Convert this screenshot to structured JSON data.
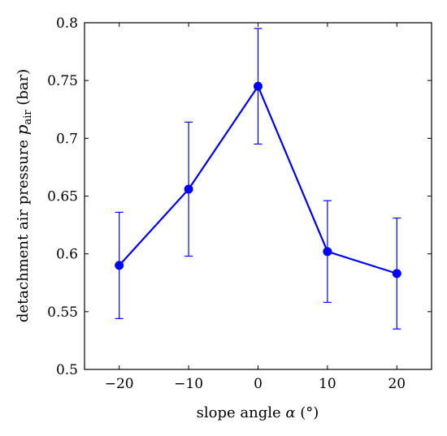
{
  "chart_data": {
    "type": "line",
    "title": "",
    "xlabel_prefix": "slope angle ",
    "xlabel_symbol": "α",
    "xlabel_suffix": " (°)",
    "ylabel_prefix": "detachment air pressure ",
    "ylabel_symbol": "p",
    "ylabel_subscript": "air",
    "ylabel_suffix": " (bar)",
    "xlim": [
      -25,
      25
    ],
    "ylim": [
      0.5,
      0.8
    ],
    "xticks": [
      -20,
      -10,
      0,
      10,
      20
    ],
    "xtick_labels": [
      "−20",
      "−10",
      "0",
      "10",
      "20"
    ],
    "yticks": [
      0.5,
      0.55,
      0.6,
      0.65,
      0.7,
      0.75,
      0.8
    ],
    "ytick_labels": [
      "0.5",
      "0.55",
      "0.6",
      "0.65",
      "0.7",
      "0.75",
      "0.8"
    ],
    "grid": false,
    "color": "#0000ff",
    "series": [
      {
        "x": [
          -20,
          -10,
          0,
          10,
          20
        ],
        "y": [
          0.59,
          0.656,
          0.745,
          0.602,
          0.583
        ],
        "err_low": [
          0.544,
          0.598,
          0.695,
          0.558,
          0.535
        ],
        "err_high": [
          0.636,
          0.714,
          0.795,
          0.646,
          0.631
        ]
      }
    ]
  }
}
